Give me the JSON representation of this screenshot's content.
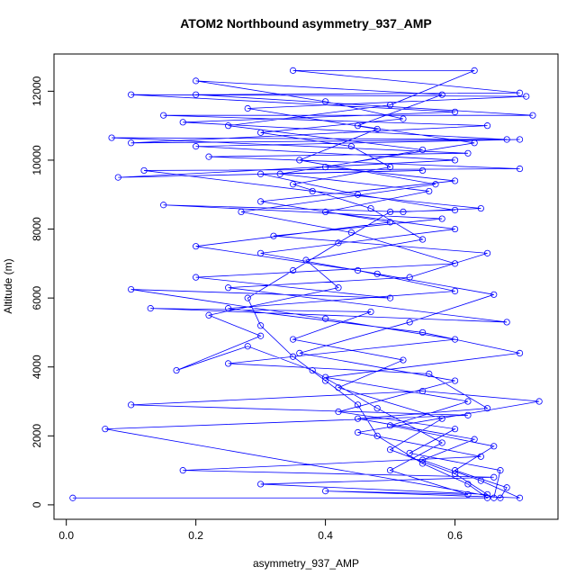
{
  "chart_data": {
    "type": "line",
    "title": "ATOM2 Northbound asymmetry_937_AMP",
    "x_label": "asymmetry_937_AMP",
    "y_label": "Altitude (m)",
    "xlim": [
      -0.019,
      0.759
    ],
    "ylim": [
      -420,
      13080
    ],
    "xticks": [
      {
        "value": 0,
        "label": "0.0"
      },
      0.2,
      0.4,
      0.6
    ],
    "yticks": [
      0,
      2000,
      4000,
      6000,
      8000,
      10000,
      12000
    ],
    "series": [
      {
        "color": "#0000ff",
        "x": [
          0.01,
          0.65,
          0.62,
          0.55,
          0.48,
          0.45,
          0.4,
          0.35,
          0.3,
          0.28,
          0.35,
          0.42,
          0.5,
          0.6,
          0.45,
          0.3,
          0.55,
          0.08,
          0.6,
          0.2,
          0.7,
          0.1,
          0.65,
          0.15,
          0.72,
          0.2,
          0.7,
          0.35,
          0.63,
          0.5,
          0.25,
          0.55,
          0.4,
          0.6,
          0.3,
          0.5,
          0.2,
          0.45,
          0.6,
          0.25,
          0.55,
          0.7,
          0.4,
          0.62,
          0.5,
          0.66,
          0.6,
          0.68,
          0.67,
          0.06,
          0.62,
          0.1,
          0.55,
          0.73,
          0.45,
          0.64,
          0.18,
          0.66,
          0.3,
          0.65,
          0.6,
          0.5,
          0.58,
          0.42,
          0.52,
          0.35,
          0.47,
          0.13,
          0.68,
          0.25,
          0.53,
          0.65,
          0.32,
          0.58,
          0.15,
          0.52,
          0.64,
          0.38,
          0.12,
          0.7,
          0.22,
          0.62,
          0.07,
          0.68,
          0.18,
          0.6,
          0.1,
          0.71,
          0.28,
          0.48,
          0.36,
          0.57,
          0.27,
          0.44,
          0.6,
          0.2,
          0.5,
          0.1,
          0.4,
          0.6,
          0.25,
          0.56,
          0.65,
          0.45,
          0.63,
          0.55,
          0.64,
          0.7,
          0.4,
          0.62,
          0.5,
          0.58,
          0.48,
          0.38,
          0.28,
          0.17,
          0.3,
          0.22,
          0.42,
          0.37,
          0.55,
          0.47,
          0.35,
          0.5,
          0.44,
          0.3,
          0.52,
          0.4,
          0.2,
          0.58,
          0.45,
          0.63,
          0.33,
          0.56,
          0.4,
          0.6,
          0.3,
          0.48,
          0.66,
          0.53,
          0.36,
          0.6,
          0.42,
          0.6,
          0.53,
          0.67,
          0.66
        ],
        "values": [
          200,
          200,
          600,
          1200,
          2000,
          2900,
          3600,
          4300,
          5200,
          6000,
          6800,
          7600,
          8500,
          8550,
          9000,
          9600,
          9700,
          9500,
          10000,
          10400,
          10600,
          10500,
          11000,
          11300,
          11300,
          11900,
          11950,
          12600,
          12600,
          11600,
          11000,
          10300,
          9800,
          9400,
          8800,
          8200,
          7500,
          6800,
          6200,
          5700,
          5000,
          4400,
          3700,
          3000,
          2300,
          1700,
          1000,
          500,
          200,
          2200,
          2600,
          2900,
          3300,
          3000,
          2100,
          1400,
          1000,
          800,
          600,
          300,
          900,
          1600,
          2500,
          3400,
          4200,
          4800,
          5600,
          5700,
          5300,
          6300,
          6600,
          7300,
          7800,
          8300,
          8700,
          8500,
          8600,
          9100,
          9700,
          9750,
          10100,
          10200,
          10650,
          10600,
          11100,
          11400,
          11900,
          11850,
          11500,
          10900,
          10000,
          9300,
          8500,
          7900,
          7000,
          6600,
          6000,
          6250,
          5400,
          4800,
          4100,
          3800,
          2800,
          2500,
          1900,
          1300,
          700,
          200,
          400,
          300,
          1000,
          1800,
          2800,
          3900,
          4600,
          3900,
          4900,
          5500,
          6300,
          7100,
          7700,
          8600,
          9300,
          9800,
          10400,
          10800,
          11200,
          11700,
          12300,
          11900,
          11000,
          10500,
          9600,
          9100,
          8500,
          8000,
          7300,
          6700,
          6100,
          5300,
          4400,
          3600,
          2700,
          2200,
          1500,
          1000,
          200
        ]
      }
    ]
  }
}
